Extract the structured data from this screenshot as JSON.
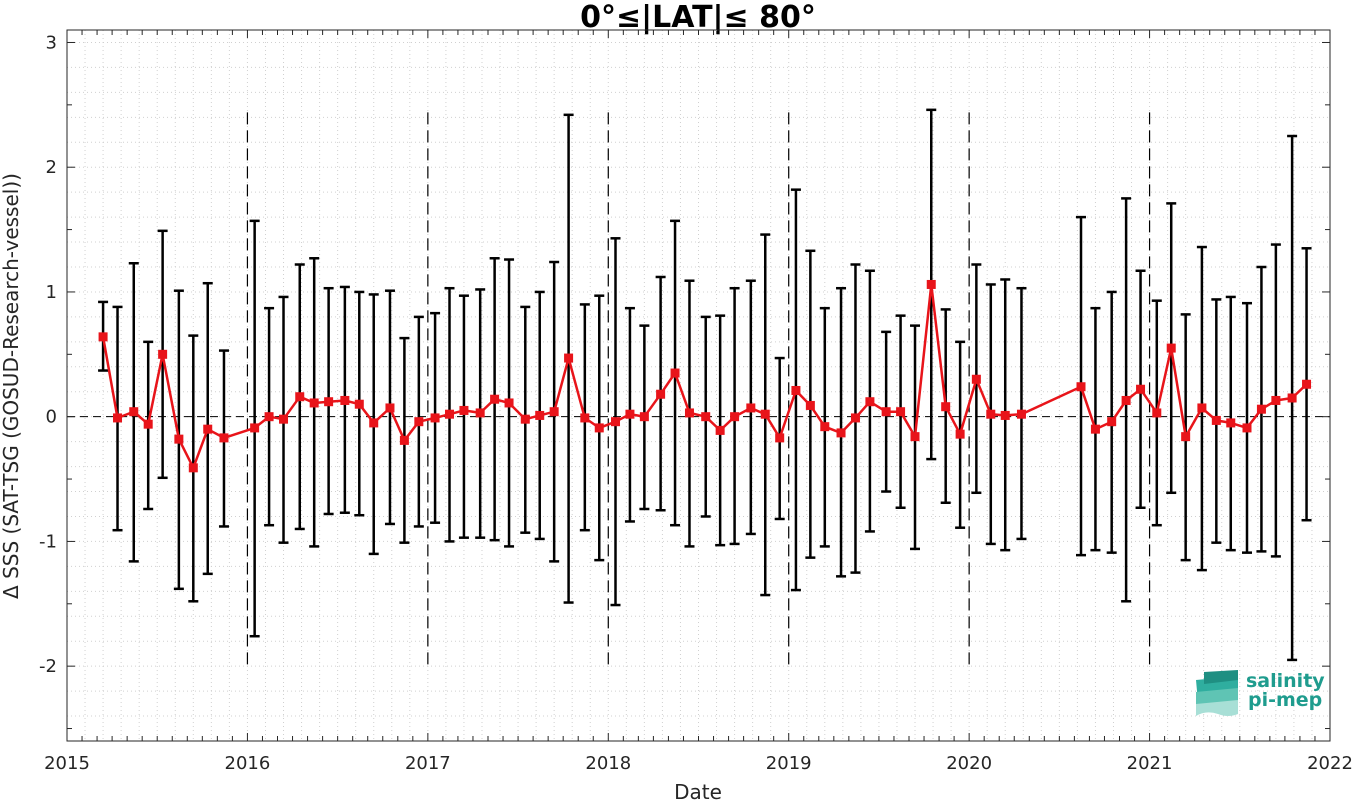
{
  "chart_data": {
    "type": "line",
    "title": "0°≤|LAT|≤ 80°",
    "xlabel": "Date",
    "ylabel": "Δ SSS (SAT-TSG (GOSUD-Research-vessel))",
    "xlim": [
      2015,
      2022
    ],
    "ylim": [
      -2.6,
      3.1
    ],
    "xticks": [
      2015,
      2016,
      2017,
      2018,
      2019,
      2020,
      2021,
      2022
    ],
    "xtick_labels": [
      "2015",
      "2016",
      "2017",
      "2018",
      "2019",
      "2020",
      "2021",
      "2022"
    ],
    "yticks": [
      -2,
      -1,
      0,
      1,
      2,
      3
    ],
    "ytick_labels": [
      "-2",
      "-1",
      "0",
      "1",
      "2",
      "3"
    ],
    "grid": "dotted",
    "year_separators": [
      2016,
      2017,
      2018,
      2019,
      2020,
      2021
    ],
    "zero_line": true,
    "series_color": "#e8141a",
    "errorbar_color": "#000000",
    "marker": "square",
    "points": [
      {
        "x": 2015.2,
        "y": 0.64,
        "lo": 0.37,
        "hi": 0.92
      },
      {
        "x": 2015.28,
        "y": -0.01,
        "lo": -0.91,
        "hi": 0.88
      },
      {
        "x": 2015.37,
        "y": 0.04,
        "lo": -1.16,
        "hi": 1.23
      },
      {
        "x": 2015.45,
        "y": -0.06,
        "lo": -0.74,
        "hi": 0.6
      },
      {
        "x": 2015.53,
        "y": 0.5,
        "lo": -0.49,
        "hi": 1.49
      },
      {
        "x": 2015.62,
        "y": -0.18,
        "lo": -1.38,
        "hi": 1.01
      },
      {
        "x": 2015.7,
        "y": -0.41,
        "lo": -1.48,
        "hi": 0.65
      },
      {
        "x": 2015.78,
        "y": -0.1,
        "lo": -1.26,
        "hi": 1.07
      },
      {
        "x": 2015.87,
        "y": -0.17,
        "lo": -0.88,
        "hi": 0.53
      },
      {
        "x": 2016.04,
        "y": -0.09,
        "lo": -1.76,
        "hi": 1.57
      },
      {
        "x": 2016.12,
        "y": 0.0,
        "lo": -0.87,
        "hi": 0.87
      },
      {
        "x": 2016.2,
        "y": -0.02,
        "lo": -1.01,
        "hi": 0.96
      },
      {
        "x": 2016.29,
        "y": 0.16,
        "lo": -0.9,
        "hi": 1.22
      },
      {
        "x": 2016.37,
        "y": 0.11,
        "lo": -1.04,
        "hi": 1.27
      },
      {
        "x": 2016.45,
        "y": 0.12,
        "lo": -0.78,
        "hi": 1.03
      },
      {
        "x": 2016.54,
        "y": 0.13,
        "lo": -0.77,
        "hi": 1.04
      },
      {
        "x": 2016.62,
        "y": 0.1,
        "lo": -0.79,
        "hi": 1.0
      },
      {
        "x": 2016.7,
        "y": -0.05,
        "lo": -1.1,
        "hi": 0.98
      },
      {
        "x": 2016.79,
        "y": 0.07,
        "lo": -0.86,
        "hi": 1.01
      },
      {
        "x": 2016.87,
        "y": -0.19,
        "lo": -1.01,
        "hi": 0.63
      },
      {
        "x": 2016.95,
        "y": -0.04,
        "lo": -0.88,
        "hi": 0.8
      },
      {
        "x": 2017.04,
        "y": -0.01,
        "lo": -0.85,
        "hi": 0.83
      },
      {
        "x": 2017.12,
        "y": 0.02,
        "lo": -1.0,
        "hi": 1.03
      },
      {
        "x": 2017.2,
        "y": 0.05,
        "lo": -0.97,
        "hi": 0.97
      },
      {
        "x": 2017.29,
        "y": 0.03,
        "lo": -0.97,
        "hi": 1.02
      },
      {
        "x": 2017.37,
        "y": 0.14,
        "lo": -0.99,
        "hi": 1.27
      },
      {
        "x": 2017.45,
        "y": 0.11,
        "lo": -1.04,
        "hi": 1.26
      },
      {
        "x": 2017.54,
        "y": -0.02,
        "lo": -0.93,
        "hi": 0.88
      },
      {
        "x": 2017.62,
        "y": 0.01,
        "lo": -0.98,
        "hi": 1.0
      },
      {
        "x": 2017.7,
        "y": 0.04,
        "lo": -1.16,
        "hi": 1.24
      },
      {
        "x": 2017.78,
        "y": 0.47,
        "lo": -1.49,
        "hi": 2.42
      },
      {
        "x": 2017.87,
        "y": -0.01,
        "lo": -0.91,
        "hi": 0.9
      },
      {
        "x": 2017.95,
        "y": -0.09,
        "lo": -1.15,
        "hi": 0.97
      },
      {
        "x": 2018.04,
        "y": -0.04,
        "lo": -1.51,
        "hi": 1.43
      },
      {
        "x": 2018.12,
        "y": 0.02,
        "lo": -0.84,
        "hi": 0.87
      },
      {
        "x": 2018.2,
        "y": 0.0,
        "lo": -0.74,
        "hi": 0.73
      },
      {
        "x": 2018.29,
        "y": 0.18,
        "lo": -0.75,
        "hi": 1.12
      },
      {
        "x": 2018.37,
        "y": 0.35,
        "lo": -0.87,
        "hi": 1.57
      },
      {
        "x": 2018.45,
        "y": 0.03,
        "lo": -1.04,
        "hi": 1.09
      },
      {
        "x": 2018.54,
        "y": 0.0,
        "lo": -0.8,
        "hi": 0.8
      },
      {
        "x": 2018.62,
        "y": -0.11,
        "lo": -1.03,
        "hi": 0.81
      },
      {
        "x": 2018.7,
        "y": 0.0,
        "lo": -1.02,
        "hi": 1.03
      },
      {
        "x": 2018.79,
        "y": 0.07,
        "lo": -0.94,
        "hi": 1.09
      },
      {
        "x": 2018.87,
        "y": 0.02,
        "lo": -1.43,
        "hi": 1.46
      },
      {
        "x": 2018.95,
        "y": -0.17,
        "lo": -0.82,
        "hi": 0.47
      },
      {
        "x": 2019.04,
        "y": 0.21,
        "lo": -1.39,
        "hi": 1.82
      },
      {
        "x": 2019.12,
        "y": 0.09,
        "lo": -1.13,
        "hi": 1.33
      },
      {
        "x": 2019.2,
        "y": -0.08,
        "lo": -1.04,
        "hi": 0.87
      },
      {
        "x": 2019.29,
        "y": -0.13,
        "lo": -1.28,
        "hi": 1.03
      },
      {
        "x": 2019.37,
        "y": -0.01,
        "lo": -1.25,
        "hi": 1.22
      },
      {
        "x": 2019.45,
        "y": 0.12,
        "lo": -0.92,
        "hi": 1.17
      },
      {
        "x": 2019.54,
        "y": 0.04,
        "lo": -0.6,
        "hi": 0.68
      },
      {
        "x": 2019.62,
        "y": 0.04,
        "lo": -0.73,
        "hi": 0.81
      },
      {
        "x": 2019.7,
        "y": -0.16,
        "lo": -1.06,
        "hi": 0.73
      },
      {
        "x": 2019.79,
        "y": 1.06,
        "lo": -0.34,
        "hi": 2.46
      },
      {
        "x": 2019.87,
        "y": 0.08,
        "lo": -0.69,
        "hi": 0.86
      },
      {
        "x": 2019.95,
        "y": -0.14,
        "lo": -0.89,
        "hi": 0.6
      },
      {
        "x": 2020.04,
        "y": 0.3,
        "lo": -0.61,
        "hi": 1.22
      },
      {
        "x": 2020.12,
        "y": 0.02,
        "lo": -1.02,
        "hi": 1.06
      },
      {
        "x": 2020.2,
        "y": 0.01,
        "lo": -1.07,
        "hi": 1.1
      },
      {
        "x": 2020.29,
        "y": 0.02,
        "lo": -0.98,
        "hi": 1.03
      },
      {
        "x": 2020.62,
        "y": 0.24,
        "lo": -1.11,
        "hi": 1.6
      },
      {
        "x": 2020.7,
        "y": -0.1,
        "lo": -1.07,
        "hi": 0.87
      },
      {
        "x": 2020.79,
        "y": -0.04,
        "lo": -1.09,
        "hi": 1.0
      },
      {
        "x": 2020.87,
        "y": 0.13,
        "lo": -1.48,
        "hi": 1.75
      },
      {
        "x": 2020.95,
        "y": 0.22,
        "lo": -0.73,
        "hi": 1.17
      },
      {
        "x": 2021.04,
        "y": 0.03,
        "lo": -0.87,
        "hi": 0.93
      },
      {
        "x": 2021.12,
        "y": 0.55,
        "lo": -0.61,
        "hi": 1.71
      },
      {
        "x": 2021.2,
        "y": -0.16,
        "lo": -1.15,
        "hi": 0.82
      },
      {
        "x": 2021.29,
        "y": 0.07,
        "lo": -1.23,
        "hi": 1.36
      },
      {
        "x": 2021.37,
        "y": -0.03,
        "lo": -1.01,
        "hi": 0.94
      },
      {
        "x": 2021.45,
        "y": -0.05,
        "lo": -1.07,
        "hi": 0.96
      },
      {
        "x": 2021.54,
        "y": -0.09,
        "lo": -1.09,
        "hi": 0.91
      },
      {
        "x": 2021.62,
        "y": 0.06,
        "lo": -1.08,
        "hi": 1.2
      },
      {
        "x": 2021.7,
        "y": 0.13,
        "lo": -1.12,
        "hi": 1.38
      },
      {
        "x": 2021.79,
        "y": 0.15,
        "lo": -1.95,
        "hi": 2.25
      },
      {
        "x": 2021.87,
        "y": 0.26,
        "lo": -0.83,
        "hi": 1.35
      }
    ]
  },
  "logo": {
    "line1": "salinity",
    "line2": "pi-mep"
  }
}
